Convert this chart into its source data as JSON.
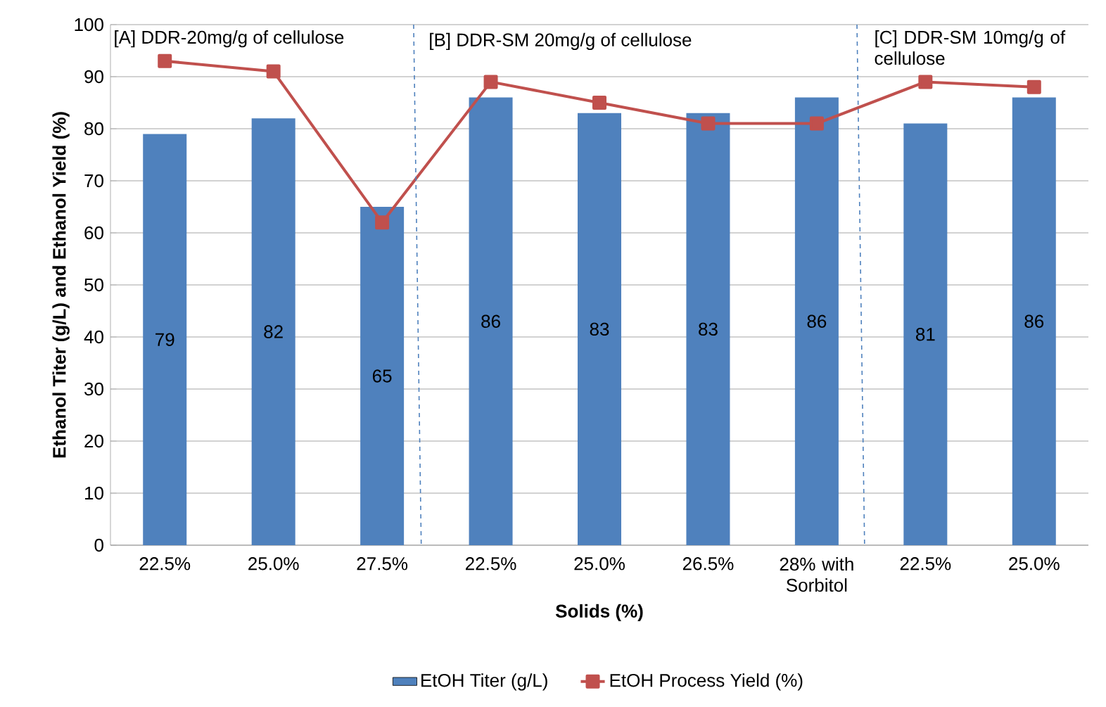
{
  "chart_data": {
    "type": "bar",
    "xlabel": "Solids (%)",
    "ylabel": "Ethanol Titer (g/L) and Ethanol Yield (%)",
    "categories": [
      "22.5%",
      "25.0%",
      "27.5%",
      "22.5%",
      "25.0%",
      "26.5%",
      "28% with Sorbitol",
      "22.5%",
      "25.0%"
    ],
    "series": [
      {
        "name": "EtOH Titer  (g/L)",
        "color": "#4f81bd",
        "values": [
          79,
          82,
          65,
          86,
          83,
          83,
          86,
          81,
          86
        ],
        "value_labels": [
          "79",
          "82",
          "65",
          "86",
          "83",
          "83",
          "86",
          "81",
          "86"
        ]
      },
      {
        "name": "EtOH Process Yield (%)",
        "type": "line",
        "color": "#c0504d",
        "marker": "square",
        "values": [
          93,
          91,
          62,
          89,
          85,
          81,
          81,
          89,
          88
        ]
      }
    ],
    "ylim": [
      0,
      100
    ],
    "yticks": [
      0,
      10,
      20,
      30,
      40,
      50,
      60,
      70,
      80,
      90,
      100
    ],
    "grid": "y",
    "legend": "bottom",
    "annotations": [
      "[A] DDR-20mg/g of cellulose",
      "[B] DDR-SM 20mg/g of cellulose",
      "[C] DDR-SM 10mg/g of cellulose"
    ]
  }
}
